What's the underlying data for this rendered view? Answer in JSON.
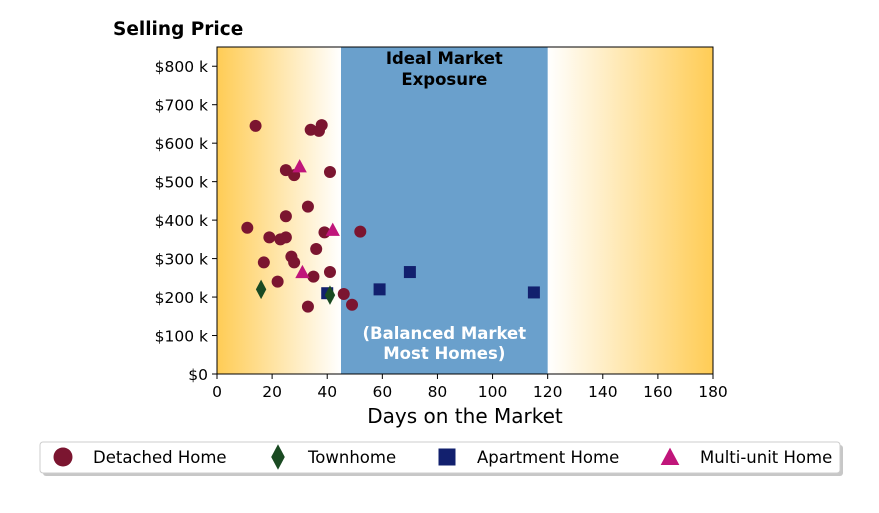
{
  "chart_data": {
    "type": "scatter",
    "ylabel": "Selling Price",
    "xlabel": "Days on the Market",
    "xlim": [
      0,
      180
    ],
    "ylim": [
      0,
      850000
    ],
    "x_ticks": [
      0,
      20,
      40,
      60,
      80,
      100,
      120,
      140,
      160,
      180
    ],
    "x_tick_labels": [
      "0",
      "20",
      "40",
      "60",
      "80",
      "100",
      "120",
      "140",
      "160",
      "180"
    ],
    "y_ticks": [
      0,
      100000,
      200000,
      300000,
      400000,
      500000,
      600000,
      700000,
      800000
    ],
    "y_tick_labels": [
      "$0",
      "$100 k",
      "$200 k",
      "$300 k",
      "$400 k",
      "$500 k",
      "$600 k",
      "$700 k",
      "$800 k"
    ],
    "grid": false,
    "legend_position": "bottom",
    "ideal_band": {
      "x_start": 45,
      "x_end": 120,
      "color": "#6aa0cc",
      "title_lines": [
        "Ideal Market",
        "Exposure"
      ],
      "note_lines": [
        "(Balanced Market",
        "Most Homes)"
      ]
    },
    "gradient_color": "#ffcc55",
    "series": [
      {
        "name": "Detached Home",
        "marker": "circle",
        "color": "#7b1530",
        "points": [
          [
            14,
            645000
          ],
          [
            11,
            380000
          ],
          [
            17,
            290000
          ],
          [
            19,
            355000
          ],
          [
            22,
            240000
          ],
          [
            23,
            350000
          ],
          [
            25,
            410000
          ],
          [
            25,
            355000
          ],
          [
            25,
            530000
          ],
          [
            27,
            305000
          ],
          [
            28,
            290000
          ],
          [
            28,
            517000
          ],
          [
            33,
            435000
          ],
          [
            34,
            635000
          ],
          [
            37,
            632000
          ],
          [
            38,
            647000
          ],
          [
            36,
            325000
          ],
          [
            39,
            368000
          ],
          [
            35,
            253000
          ],
          [
            33,
            175000
          ],
          [
            41,
            265000
          ],
          [
            41,
            525000
          ],
          [
            46,
            208000
          ],
          [
            49,
            180000
          ],
          [
            52,
            370000
          ]
        ]
      },
      {
        "name": "Townhome",
        "marker": "diamond",
        "color": "#1a4a22",
        "points": [
          [
            16,
            220000
          ],
          [
            41,
            205000
          ]
        ]
      },
      {
        "name": "Apartment Home",
        "marker": "square",
        "color": "#12206e",
        "points": [
          [
            40,
            210000
          ],
          [
            59,
            220000
          ],
          [
            70,
            265000
          ],
          [
            115,
            212000
          ]
        ]
      },
      {
        "name": "Multi-unit Home",
        "marker": "triangle",
        "color": "#c0157a",
        "points": [
          [
            30,
            540000
          ],
          [
            42,
            375000
          ],
          [
            31,
            265000
          ]
        ]
      }
    ]
  }
}
